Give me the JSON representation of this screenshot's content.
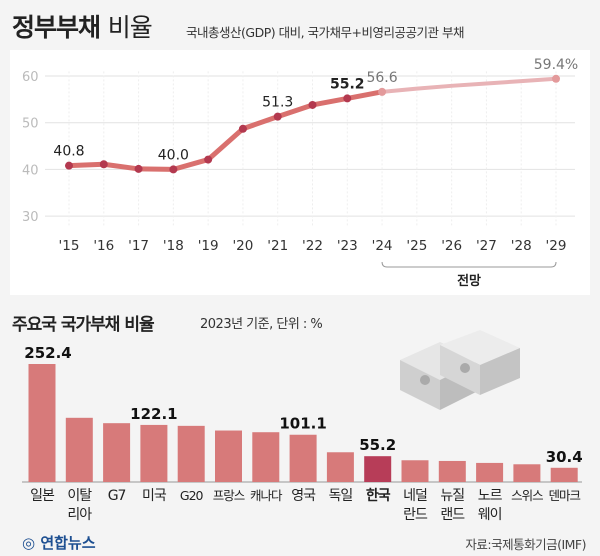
{
  "header": {
    "title_bold": "정부부채",
    "title_light": "비율",
    "subtitle": "국내총생산(GDP) 대비, 국가채무+비영리공공기관 부채"
  },
  "chart_data": [
    {
      "type": "line",
      "x": [
        "'15",
        "'16",
        "'17",
        "'18",
        "'19",
        "'20",
        "'21",
        "'22",
        "'23",
        "'24",
        "'25",
        "'26",
        "'27",
        "'28",
        "'29"
      ],
      "values": [
        40.8,
        41.1,
        40.1,
        40.0,
        42.1,
        48.7,
        51.3,
        53.8,
        55.2,
        56.6,
        57.3,
        57.9,
        58.4,
        58.9,
        59.4
      ],
      "labels": {
        "0": "40.8",
        "3": "40.0",
        "6": "51.3",
        "8": "55.2",
        "9": "56.6",
        "14": "59.4%"
      },
      "projection_from_index": 9,
      "projection_label": "전망",
      "yticks": [
        30,
        40,
        50,
        60
      ],
      "ylim": [
        27,
        63
      ],
      "grid": true,
      "colors": {
        "line": "#d9706e",
        "marker": "#b3394f",
        "projection": "#e8b3b6"
      }
    },
    {
      "type": "bar",
      "title": "주요국 국가부채 비율",
      "subtitle": "2023년 기준, 단위 : %",
      "categories": [
        "일본",
        "이탈\n리아",
        "G7",
        "미국",
        "G20",
        "프랑스",
        "캐나다",
        "영국",
        "독일",
        "한국",
        "네덜\n란드",
        "뉴질\n랜드",
        "노르\n웨이",
        "스위스",
        "덴마크"
      ],
      "values": [
        252.4,
        137.3,
        125.8,
        122.1,
        120.1,
        110.1,
        106.5,
        101.1,
        63.6,
        55.2,
        46.5,
        45.0,
        40.8,
        37.9,
        30.4
      ],
      "labels": {
        "0": "252.4",
        "3": "122.1",
        "7": "101.1",
        "9": "55.2",
        "14": "30.4"
      },
      "highlight_index": 9,
      "colors": {
        "bar": "#d77a7a",
        "highlight": "#b73d58"
      }
    }
  ],
  "footer": {
    "logo": "연합뉴스",
    "source": "자료:국제통화기금(IMF)"
  }
}
